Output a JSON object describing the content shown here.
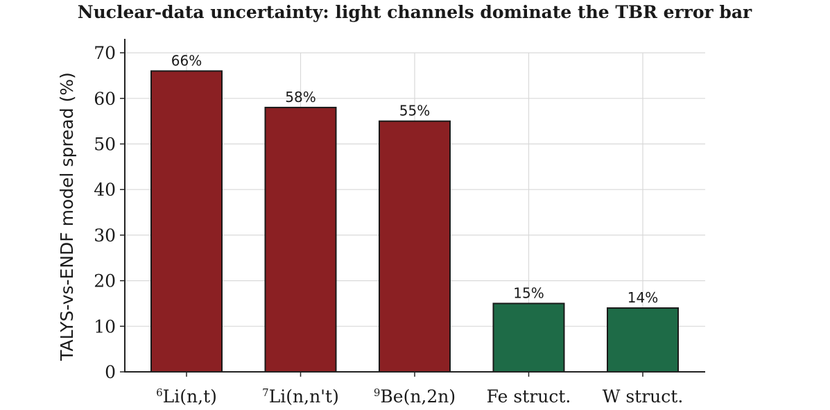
{
  "chart_data": {
    "type": "bar",
    "title": "Nuclear-data uncertainty: light channels dominate the TBR error bar",
    "xlabel": "",
    "ylabel": "TALYS-vs-ENDF model spread (%)",
    "ylim": [
      0,
      70
    ],
    "yticks": [
      "0",
      "10",
      "20",
      "30",
      "40",
      "50",
      "60",
      "70"
    ],
    "grid": true,
    "categories": [
      {
        "sup": "6",
        "label": "Li(n,t)"
      },
      {
        "sup": "7",
        "label": "Li(n,n't)"
      },
      {
        "sup": "9",
        "label": "Be(n,2n)"
      },
      {
        "sup": "",
        "label": "Fe struct."
      },
      {
        "sup": "",
        "label": "W struct."
      }
    ],
    "values": [
      66,
      58,
      55,
      15,
      14
    ],
    "data_labels": [
      "66%",
      "58%",
      "55%",
      "15%",
      "14%"
    ],
    "bar_colors": [
      "#8b2023",
      "#8b2023",
      "#8b2023",
      "#1e6b47",
      "#1e6b47"
    ]
  }
}
